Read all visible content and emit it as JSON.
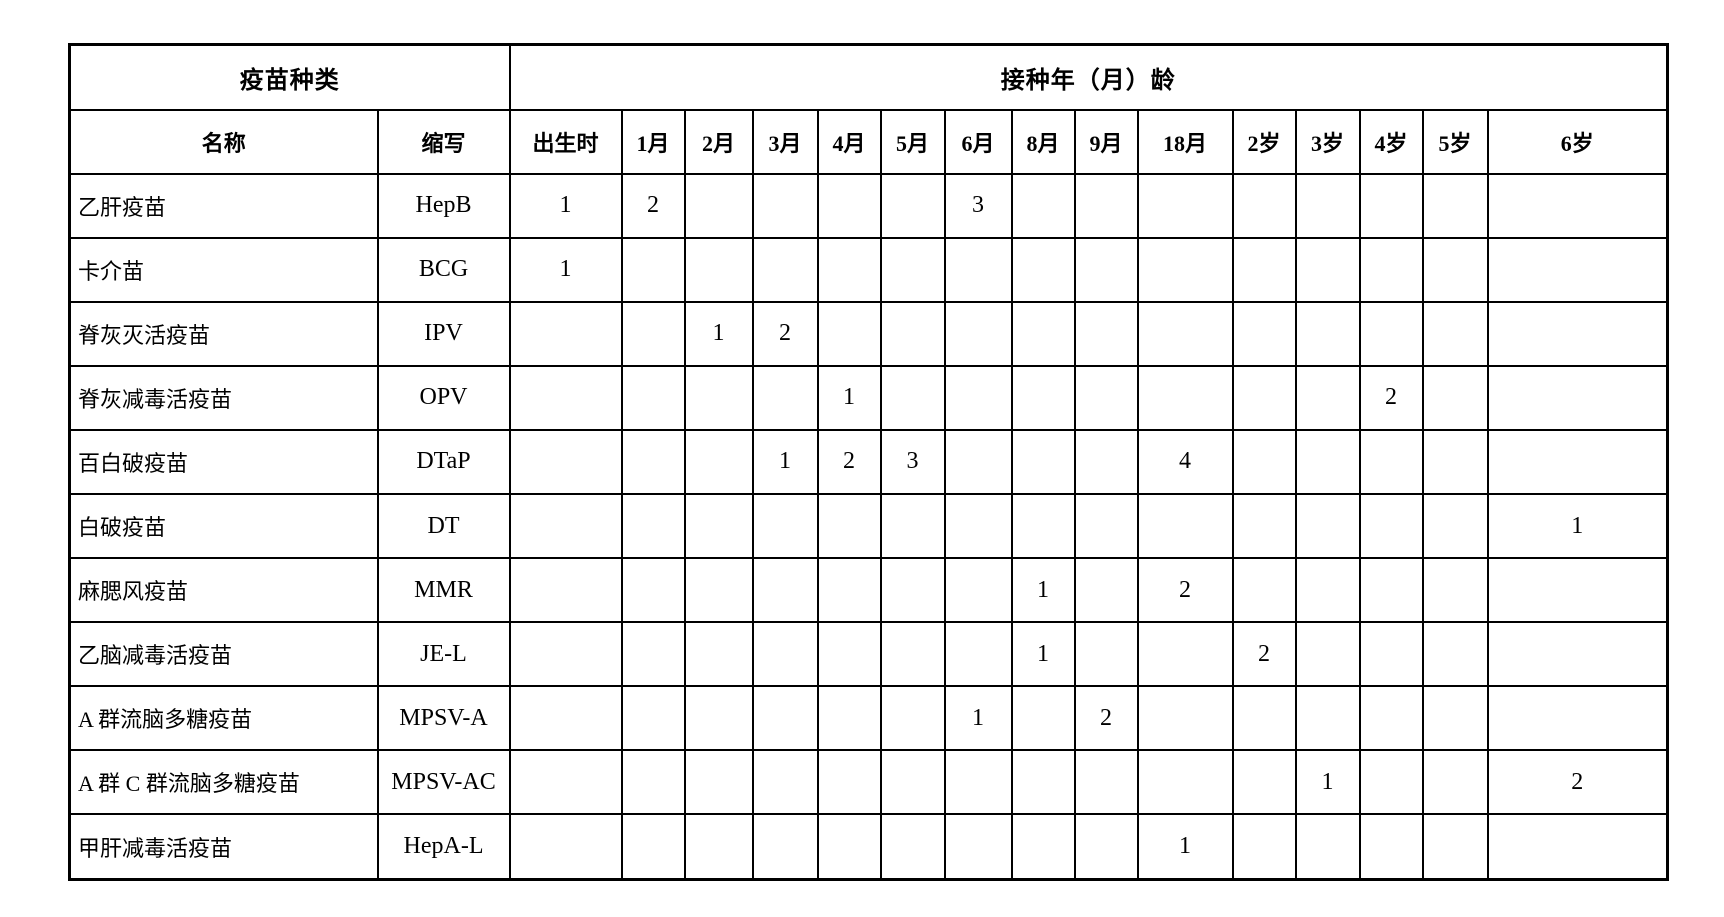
{
  "table": {
    "header": {
      "vaccine_type": "疫苗种类",
      "age_title": "接种年（月）龄",
      "name_col": "名称",
      "abbr_col": "缩写",
      "age_columns": [
        "出生时",
        "1月",
        "2月",
        "3月",
        "4月",
        "5月",
        "6月",
        "8月",
        "9月",
        "18月",
        "2岁",
        "3岁",
        "4岁",
        "5岁",
        "6岁"
      ]
    },
    "rows": [
      {
        "name": "乙肝疫苗",
        "abbr": "HepB",
        "doses": [
          "1",
          "2",
          "",
          "",
          "",
          "",
          "3",
          "",
          "",
          "",
          "",
          "",
          "",
          "",
          ""
        ]
      },
      {
        "name": "卡介苗",
        "abbr": "BCG",
        "doses": [
          "1",
          "",
          "",
          "",
          "",
          "",
          "",
          "",
          "",
          "",
          "",
          "",
          "",
          "",
          ""
        ]
      },
      {
        "name": "脊灰灭活疫苗",
        "abbr": "IPV",
        "doses": [
          "",
          "",
          "1",
          "2",
          "",
          "",
          "",
          "",
          "",
          "",
          "",
          "",
          "",
          "",
          ""
        ]
      },
      {
        "name": "脊灰减毒活疫苗",
        "abbr": "OPV",
        "doses": [
          "",
          "",
          "",
          "",
          "1",
          "",
          "",
          "",
          "",
          "",
          "",
          "",
          "2",
          "",
          ""
        ]
      },
      {
        "name": "百白破疫苗",
        "abbr": "DTaP",
        "doses": [
          "",
          "",
          "",
          "1",
          "2",
          "3",
          "",
          "",
          "",
          "4",
          "",
          "",
          "",
          "",
          ""
        ]
      },
      {
        "name": "白破疫苗",
        "abbr": "DT",
        "doses": [
          "",
          "",
          "",
          "",
          "",
          "",
          "",
          "",
          "",
          "",
          "",
          "",
          "",
          "",
          "1"
        ]
      },
      {
        "name": "麻腮风疫苗",
        "abbr": "MMR",
        "doses": [
          "",
          "",
          "",
          "",
          "",
          "",
          "",
          "1",
          "",
          "2",
          "",
          "",
          "",
          "",
          ""
        ]
      },
      {
        "name": "乙脑减毒活疫苗",
        "abbr": "JE-L",
        "doses": [
          "",
          "",
          "",
          "",
          "",
          "",
          "",
          "1",
          "",
          "",
          "2",
          "",
          "",
          "",
          ""
        ]
      },
      {
        "name": "A 群流脑多糖疫苗",
        "abbr": "MPSV-A",
        "doses": [
          "",
          "",
          "",
          "",
          "",
          "",
          "1",
          "",
          "2",
          "",
          "",
          "",
          "",
          "",
          ""
        ]
      },
      {
        "name": "A 群 C 群流脑多糖疫苗",
        "abbr": "MPSV-AC",
        "doses": [
          "",
          "",
          "",
          "",
          "",
          "",
          "",
          "",
          "",
          "",
          "",
          "1",
          "",
          "",
          "2"
        ]
      },
      {
        "name": "甲肝减毒活疫苗",
        "abbr": "HepA-L",
        "doses": [
          "",
          "",
          "",
          "",
          "",
          "",
          "",
          "",
          "",
          "1",
          "",
          "",
          "",
          "",
          ""
        ]
      }
    ]
  }
}
